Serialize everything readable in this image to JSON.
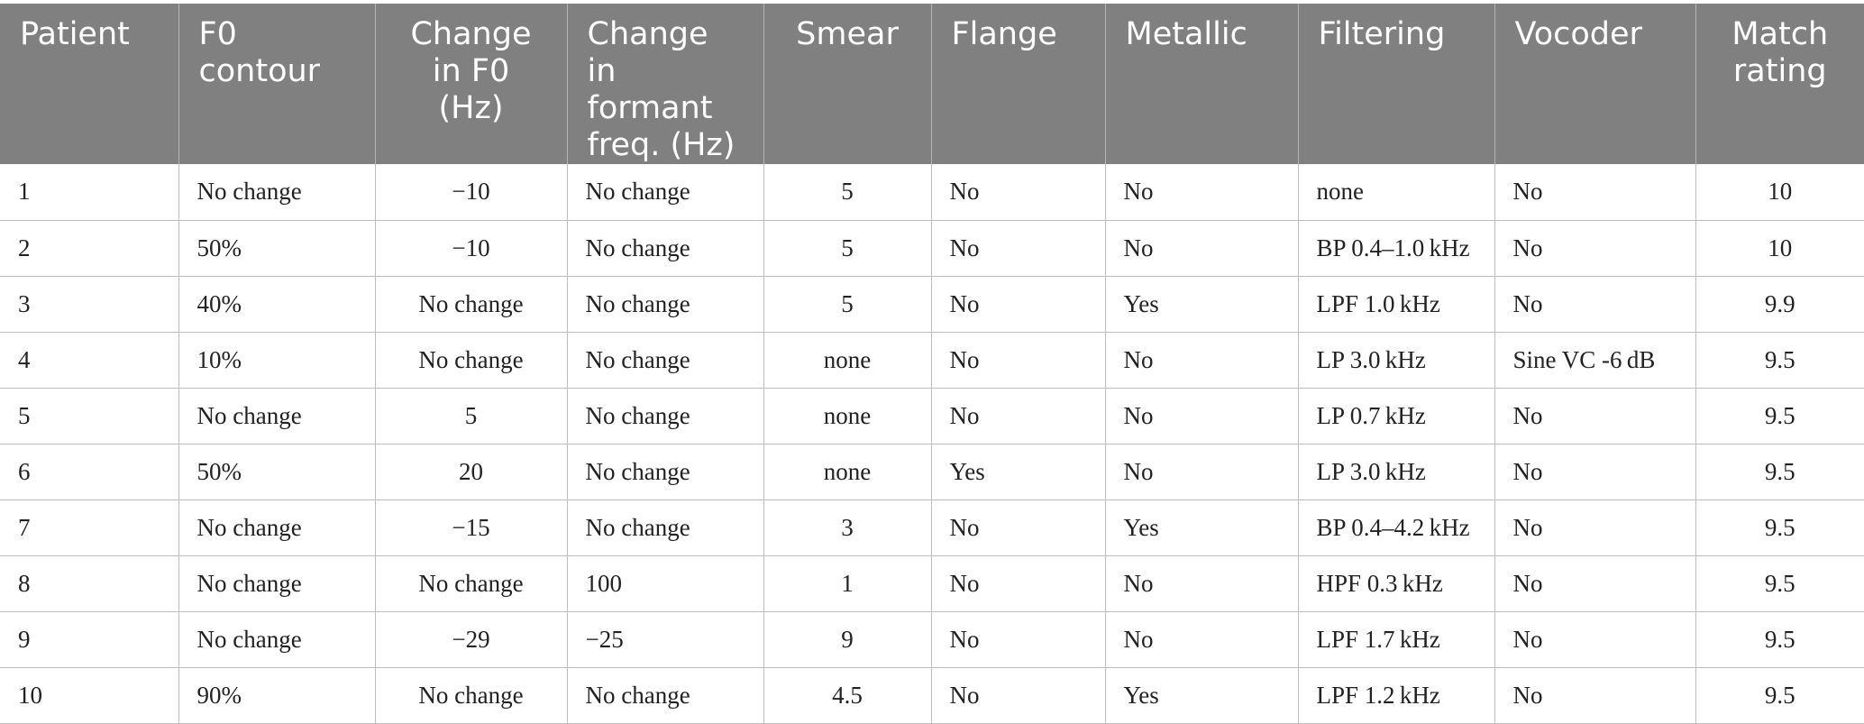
{
  "table": {
    "headers": [
      {
        "label": "Patient"
      },
      {
        "label": "F0 contour"
      },
      {
        "label": "Change in F0 (Hz)"
      },
      {
        "label": "Change in formant freq. (Hz)"
      },
      {
        "label": "Smear"
      },
      {
        "label": "Flange"
      },
      {
        "label": "Metallic"
      },
      {
        "label": "Filtering"
      },
      {
        "label": "Vocoder"
      },
      {
        "label": "Match rating"
      }
    ],
    "rows": [
      [
        "1",
        "No change",
        "−10",
        "No change",
        "5",
        "No",
        "No",
        "none",
        "No",
        "10"
      ],
      [
        "2",
        "50%",
        "−10",
        "No change",
        "5",
        "No",
        "No",
        "BP 0.4–1.0 kHz",
        "No",
        "10"
      ],
      [
        "3",
        "40%",
        "No change",
        "No change",
        "5",
        "No",
        "Yes",
        "LPF 1.0 kHz",
        "No",
        "9.9"
      ],
      [
        "4",
        "10%",
        "No change",
        "No change",
        "none",
        "No",
        "No",
        "LP 3.0 kHz",
        "Sine VC -6 dB",
        "9.5"
      ],
      [
        "5",
        "No change",
        "5",
        "No change",
        "none",
        "No",
        "No",
        "LP 0.7 kHz",
        "No",
        "9.5"
      ],
      [
        "6",
        "50%",
        "20",
        "No change",
        "none",
        "Yes",
        "No",
        "LP 3.0 kHz",
        "No",
        "9.5"
      ],
      [
        "7",
        "No change",
        "−15",
        "No change",
        "3",
        "No",
        "Yes",
        "BP 0.4–4.2 kHz",
        "No",
        "9.5"
      ],
      [
        "8",
        "No change",
        "No change",
        "100",
        "1",
        "No",
        "No",
        "HPF 0.3 kHz",
        "No",
        "9.5"
      ],
      [
        "9",
        "No change",
        "−29",
        "−25",
        "9",
        "No",
        "No",
        "LPF 1.7 kHz",
        "No",
        "9.5"
      ],
      [
        "10",
        "90%",
        "No change",
        "No change",
        "4.5",
        "No",
        "Yes",
        "LPF 1.2 kHz",
        "No",
        "9.5"
      ]
    ]
  },
  "colors": {
    "header_background": "#808080",
    "header_text": "#ffffff",
    "grid_line": "#bdbdbd"
  }
}
